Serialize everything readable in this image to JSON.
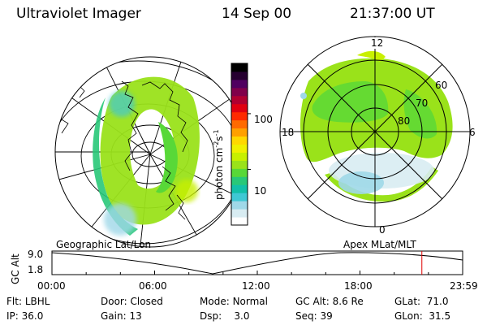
{
  "header": {
    "instrument": "Ultraviolet Imager",
    "date": "14 Sep 00",
    "time": "21:37:00 UT"
  },
  "colorbar": {
    "unit_label": "photon cm",
    "unit_sup1": "-2",
    "unit_s": "s",
    "unit_sup2": "-1",
    "ticks": [
      {
        "label": "100",
        "value": 100
      },
      {
        "label": "10",
        "value": 10
      }
    ],
    "colors": [
      "#ffffff",
      "#d8ecf2",
      "#9fd8e8",
      "#3fc8d4",
      "#12c0a8",
      "#28c878",
      "#58d838",
      "#9ae21a",
      "#c8f000",
      "#f0f000",
      "#ffd800",
      "#ffa000",
      "#ff6a00",
      "#ff2a00",
      "#e00010",
      "#b00030",
      "#80004a",
      "#500060",
      "#260030",
      "#000000"
    ]
  },
  "left_panel": {
    "caption": "Geographic Lat/Lon"
  },
  "right_panel": {
    "caption": "Apex MLat/MLT",
    "mlt_labels": {
      "top": "12",
      "left": "18",
      "right": "6",
      "bottom": "0"
    },
    "lat_labels": [
      "60",
      "70",
      "80"
    ]
  },
  "timeline": {
    "y_axis_label": "GC Alt",
    "y_ticks": [
      "9.0",
      "1.8"
    ],
    "x_ticks": [
      "00:00",
      "06:00",
      "12:00",
      "18:00",
      "23:59"
    ],
    "current_time_hours": 21.617,
    "marker_color": "#e00000"
  },
  "info": {
    "flt": {
      "label": "Flt:",
      "value": "LBHL"
    },
    "ip": {
      "label": "IP:",
      "value": "36.0"
    },
    "door": {
      "label": "Door:",
      "value": "Closed"
    },
    "gain": {
      "label": "Gain:",
      "value": "13"
    },
    "mode": {
      "label": "Mode:",
      "value": "Normal"
    },
    "dsp": {
      "label": "Dsp:",
      "value": "3.0"
    },
    "gcalt": {
      "label": "GC Alt:",
      "value": "8.6 Re"
    },
    "seq": {
      "label": "Seq:",
      "value": "39"
    },
    "glat": {
      "label": "GLat:",
      "value": "71.0"
    },
    "glon": {
      "label": "GLon:",
      "value": "31.5"
    }
  }
}
